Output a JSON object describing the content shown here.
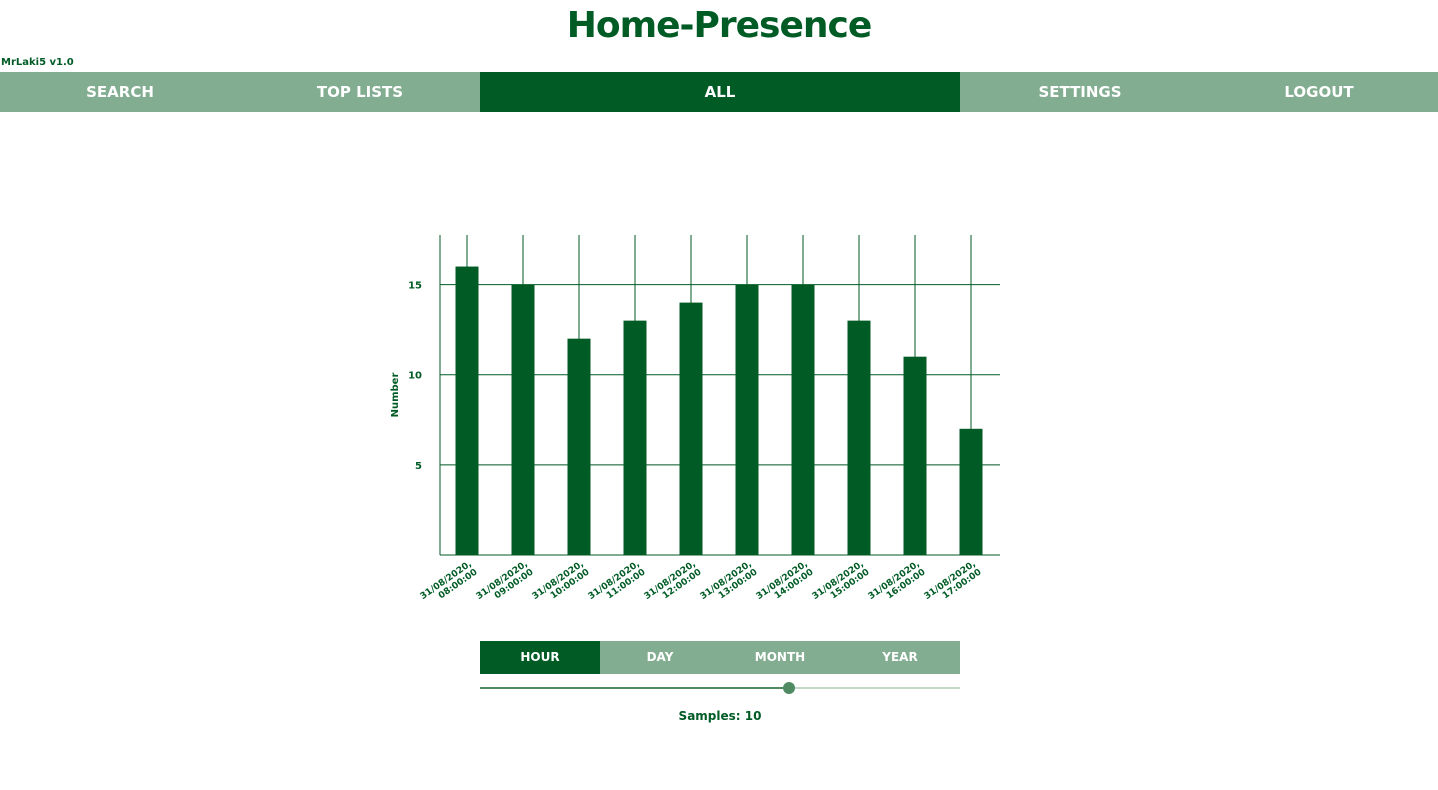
{
  "header": {
    "title": "Home-Presence",
    "version": "MrLaki5 v1.0"
  },
  "nav": {
    "items": [
      {
        "label": "SEARCH",
        "active": false
      },
      {
        "label": "TOP LISTS",
        "active": false
      },
      {
        "label": "ALL",
        "active": true
      },
      {
        "label": "SETTINGS",
        "active": false
      },
      {
        "label": "LOGOUT",
        "active": false
      }
    ]
  },
  "colors": {
    "primary": "#005b25",
    "muted": "#82ad91",
    "slider": "#4f8a63"
  },
  "chart_data": {
    "type": "bar",
    "categories": [
      "31/08/2020, 08:00:00",
      "31/08/2020, 09:00:00",
      "31/08/2020, 10:00:00",
      "31/08/2020, 11:00:00",
      "31/08/2020, 12:00:00",
      "31/08/2020, 13:00:00",
      "31/08/2020, 14:00:00",
      "31/08/2020, 15:00:00",
      "31/08/2020, 16:00:00",
      "31/08/2020, 17:00:00"
    ],
    "values": [
      16,
      15,
      12,
      13,
      14,
      15,
      15,
      13,
      11,
      7
    ],
    "title": "",
    "xlabel": "",
    "ylabel": "Number",
    "ylim": [
      0,
      17.75
    ],
    "yticks": [
      5,
      10,
      15
    ],
    "grid": true,
    "legend": "none"
  },
  "range": {
    "tabs": [
      {
        "label": "HOUR",
        "active": true
      },
      {
        "label": "DAY",
        "active": false
      },
      {
        "label": "MONTH",
        "active": false
      },
      {
        "label": "YEAR",
        "active": false
      }
    ],
    "slider_fraction": 0.643,
    "samples_label": "Samples: 10"
  }
}
